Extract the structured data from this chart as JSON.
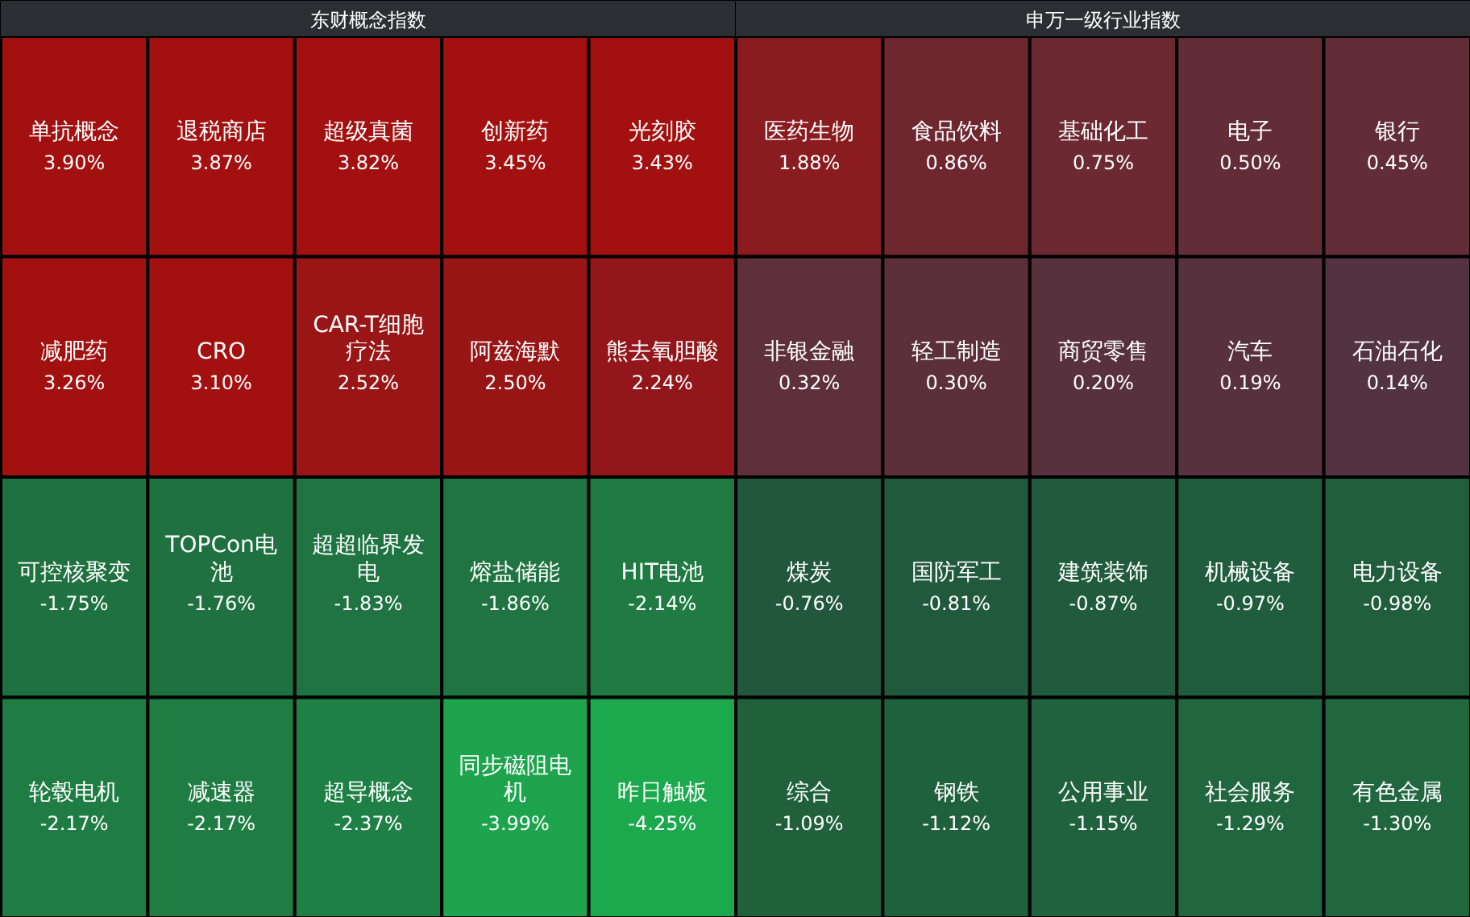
{
  "chart_data": [
    {
      "type": "other",
      "title": "东财概念指数",
      "categories": [
        "单抗概念",
        "退税商店",
        "超级真菌",
        "创新药",
        "光刻胶",
        "减肥药",
        "CRO",
        "CAR-T细胞疗法",
        "阿兹海默",
        "熊去氧胆酸",
        "可控核聚变",
        "TOPCon电池",
        "超超临界发电",
        "熔盐储能",
        "HIT电池",
        "轮毂电机",
        "减速器",
        "超导概念",
        "同步磁阻电机",
        "昨日触板"
      ],
      "values": [
        3.9,
        3.87,
        3.82,
        3.45,
        3.43,
        3.26,
        3.1,
        2.52,
        2.5,
        2.24,
        -1.75,
        -1.76,
        -1.83,
        -1.86,
        -2.14,
        -2.17,
        -2.17,
        -2.37,
        -3.99,
        -4.25
      ],
      "value_labels": [
        "3.90%",
        "3.87%",
        "3.82%",
        "3.45%",
        "3.43%",
        "3.26%",
        "3.10%",
        "2.52%",
        "2.50%",
        "2.24%",
        "-1.75%",
        "-1.76%",
        "-1.83%",
        "-1.86%",
        "-2.14%",
        "-2.17%",
        "-2.17%",
        "-2.37%",
        "-3.99%",
        "-4.25%"
      ]
    },
    {
      "type": "other",
      "title": "申万一级行业指数",
      "categories": [
        "医药生物",
        "食品饮料",
        "基础化工",
        "电子",
        "银行",
        "非银金融",
        "轻工制造",
        "商贸零售",
        "汽车",
        "石油石化",
        "煤炭",
        "国防军工",
        "建筑装饰",
        "机械设备",
        "电力设备",
        "综合",
        "钢铁",
        "公用事业",
        "社会服务",
        "有色金属"
      ],
      "values": [
        1.88,
        0.86,
        0.75,
        0.5,
        0.45,
        0.32,
        0.3,
        0.2,
        0.19,
        0.14,
        -0.76,
        -0.81,
        -0.87,
        -0.97,
        -0.98,
        -1.09,
        -1.12,
        -1.15,
        -1.29,
        -1.3
      ],
      "value_labels": [
        "1.88%",
        "0.86%",
        "0.75%",
        "0.50%",
        "0.45%",
        "0.32%",
        "0.30%",
        "0.20%",
        "0.19%",
        "0.14%",
        "-0.76%",
        "-0.81%",
        "-0.87%",
        "-0.97%",
        "-0.98%",
        "-1.09%",
        "-1.12%",
        "-1.15%",
        "-1.29%",
        "-1.30%"
      ]
    }
  ]
}
